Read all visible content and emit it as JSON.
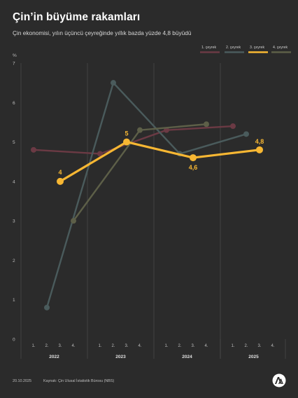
{
  "header": {
    "title": "Çin’in büyüme rakamları",
    "subtitle": "Çin ekonomisi, yılın üçüncü çeyreğinde yıllık bazda yüzde 4,8 büyüdü"
  },
  "footer": {
    "date": "20.10.2025",
    "source": "Kaynak: Çin Ulusal İstatistik Bürosu (NBS)"
  },
  "logo": {
    "icon": "aa-logo-icon"
  },
  "colors": {
    "background": "#2b2b2b",
    "grid": "#4a4a4a",
    "axis_text": "#bdbdbd",
    "highlight": "#f7b733"
  },
  "chart_data": {
    "type": "line",
    "ylabel": "%",
    "ylim": [
      0,
      7
    ],
    "yticks": [
      "0",
      "1",
      "2",
      "3",
      "4",
      "5",
      "6",
      "7"
    ],
    "grid": "vertical lines between years",
    "legend_position": "top-right",
    "years": [
      "2022",
      "2023",
      "2024",
      "2025"
    ],
    "quarter_ticks": [
      "1.",
      "2.",
      "3.",
      "4."
    ],
    "series": [
      {
        "name": "1. çeyrek",
        "color": "#6b3a44",
        "values": [
          4.8,
          4.7,
          5.3,
          5.4
        ],
        "labels": []
      },
      {
        "name": "2. çeyrek",
        "color": "#4a5b5c",
        "values": [
          0.8,
          6.5,
          4.7,
          5.2
        ],
        "labels": []
      },
      {
        "name": "3. çeyrek",
        "color": "#f7b733",
        "values": [
          4.0,
          5.0,
          4.6,
          4.8
        ],
        "labels": [
          "4",
          "5",
          "4,6",
          "4,8"
        ]
      },
      {
        "name": "4. çeyrek",
        "color": "#5d5f48",
        "values": [
          3.0,
          5.3,
          5.45,
          null
        ],
        "labels": []
      }
    ]
  }
}
